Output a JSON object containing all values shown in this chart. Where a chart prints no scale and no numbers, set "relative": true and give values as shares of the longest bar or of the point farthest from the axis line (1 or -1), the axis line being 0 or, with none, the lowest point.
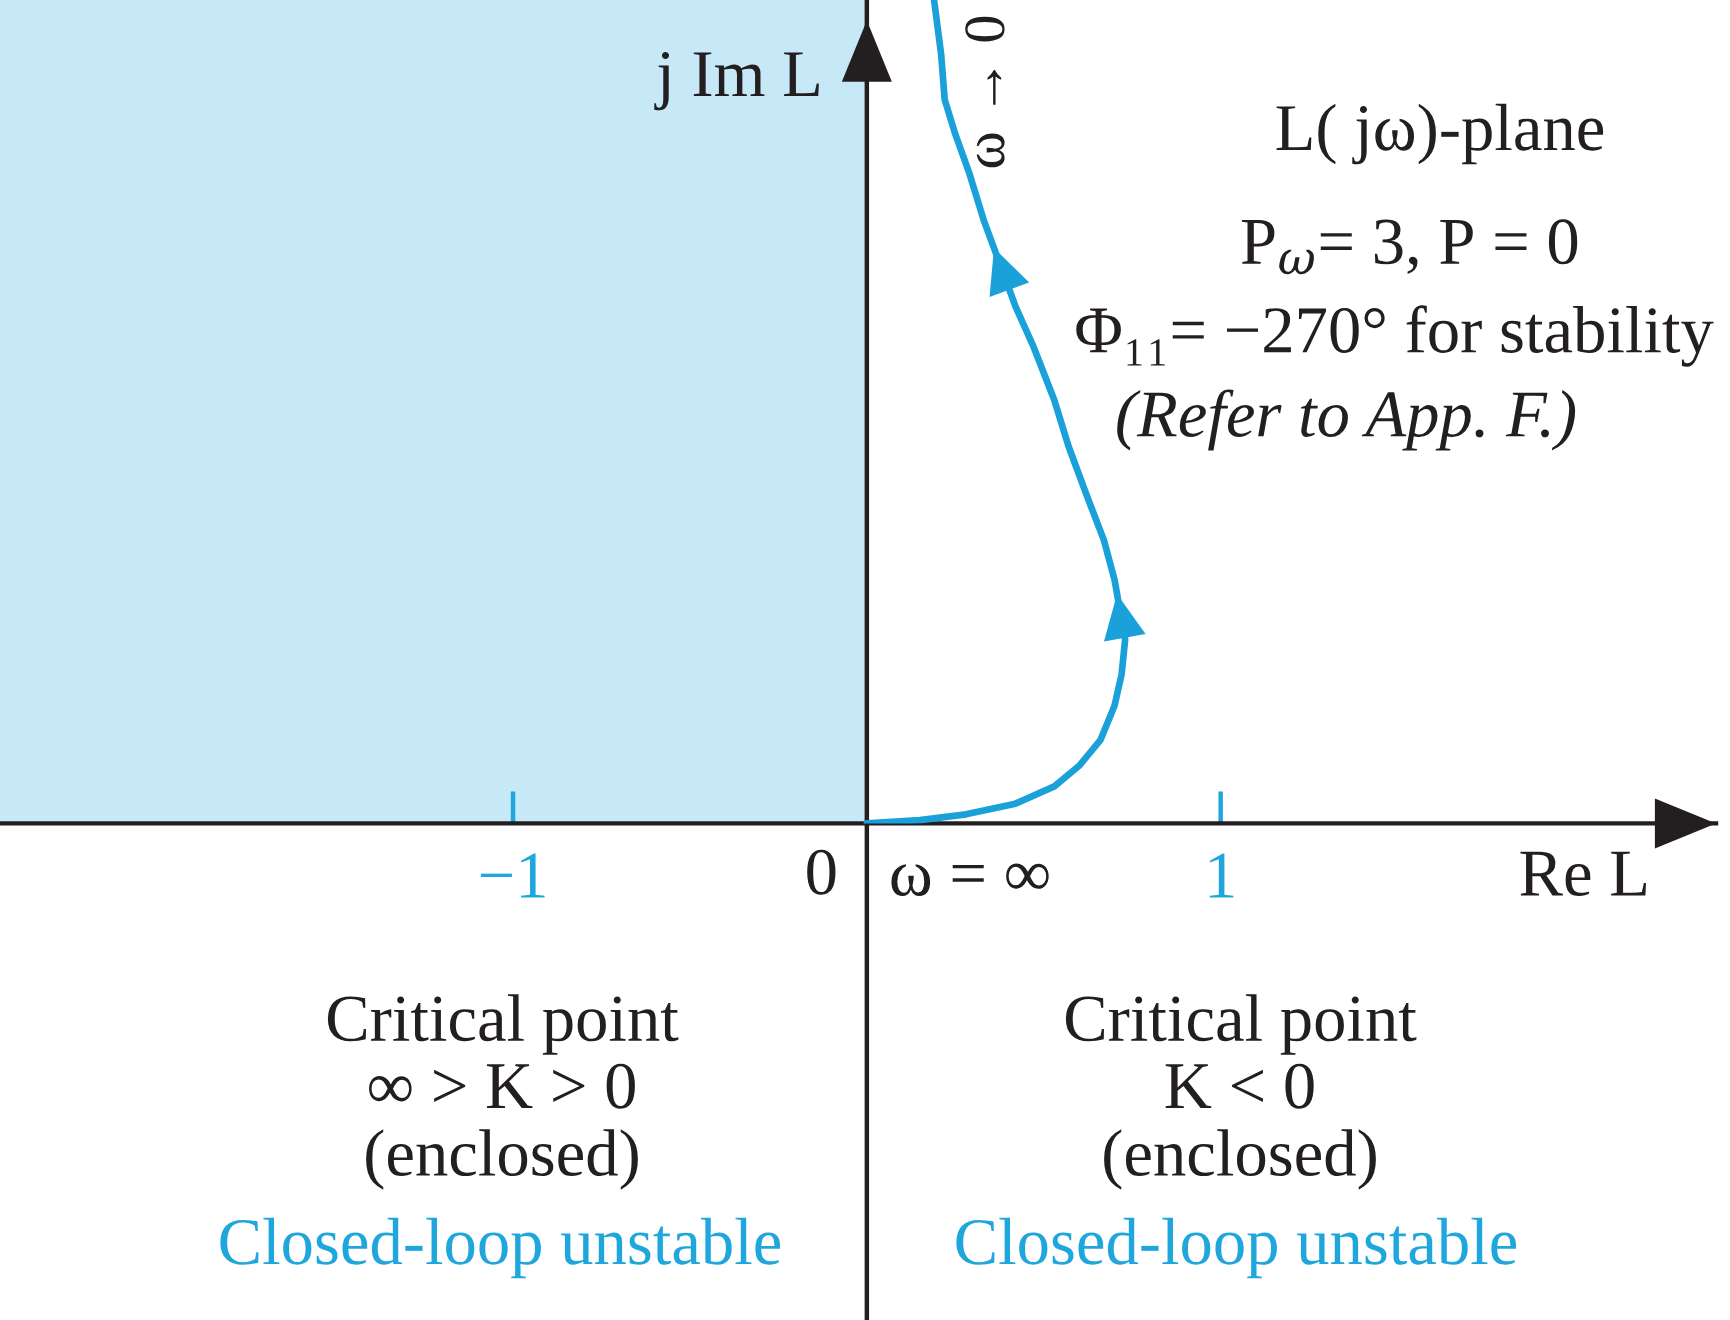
{
  "chart_data": {
    "type": "line",
    "relative": true,
    "xlabel": "Re L",
    "ylabel": "j Im L",
    "xlim": [
      -2.45,
      2.4
    ],
    "xticks": [
      {
        "value": -1,
        "label": "−1"
      },
      1
    ],
    "x": [
      0,
      0.15,
      0.28,
      0.42,
      0.53,
      0.6,
      0.66,
      0.7,
      0.72,
      0.73,
      0.7,
      0.67,
      0.62,
      0.57,
      0.53,
      0.47,
      0.42,
      0.33,
      0.29,
      0.25,
      0.22,
      0.21,
      0.19
    ],
    "series": [
      {
        "color": "#1aa1da",
        "values": [
          0,
          0.004,
          0.011,
          0.024,
          0.045,
          0.07,
          0.101,
          0.143,
          0.181,
          0.223,
          0.296,
          0.344,
          0.4,
          0.458,
          0.514,
          0.58,
          0.628,
          0.733,
          0.789,
          0.837,
          0.879,
          0.934,
          1.0
        ]
      }
    ],
    "bands": [
      {
        "axis": "x",
        "from": -2.45,
        "to": 0,
        "color": "#c7e9f7"
      }
    ],
    "annotations": [
      "L( jω)-plane",
      "P$_{ω}$= 3, P = 0",
      "Φ₁₁= −270° for stability",
      "(Refer to App. F.)",
      "ω → 0",
      "0",
      {
        "text": "ω = ∞",
        "x": 0,
        "y": 0
      },
      "Critical point\n∞ > K > 0\n(enclosed)",
      "Closed-loop unstable",
      "Critical point\nK < 0\n(enclosed)",
      "Closed-loop unstable"
    ]
  }
}
